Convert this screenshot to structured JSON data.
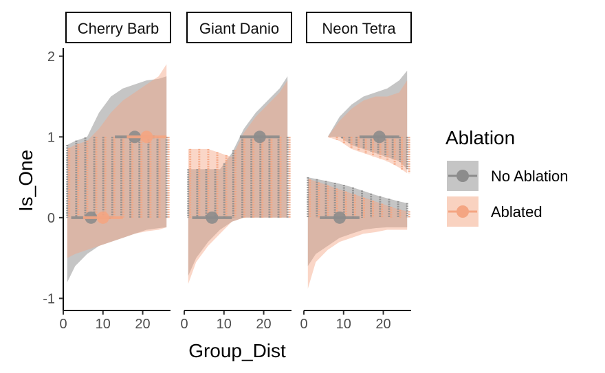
{
  "chart_data": {
    "type": "scatter",
    "description_style": "faceted raincloud-like plot with ribbons, jittered dots and summary points",
    "xlabel": "Group_Dist",
    "ylabel": "Is_One",
    "xlim": [
      0,
      27
    ],
    "ylim": [
      -1.15,
      2.1
    ],
    "x_ticks": [
      0,
      10,
      20
    ],
    "y_ticks": [
      -1,
      0,
      1,
      2
    ],
    "grid": false,
    "legend": {
      "title": "Ablation",
      "position": "right",
      "entries": [
        {
          "label": "No Ablation",
          "color": "#8c8c8c"
        },
        {
          "label": "Ablated",
          "color": "#f4a582"
        }
      ]
    },
    "facets": [
      {
        "label": "Cherry Barb",
        "summary_points": [
          {
            "series": "No Ablation",
            "x": 7,
            "y": 0
          },
          {
            "series": "No Ablation",
            "x": 18,
            "y": 1
          },
          {
            "series": "Ablated",
            "x": 10,
            "y": 0
          },
          {
            "series": "Ablated",
            "x": 21,
            "y": 1
          }
        ],
        "ribbons": [
          {
            "series": "No Ablation",
            "x": [
              1,
              3,
              6,
              9,
              12,
              15,
              18,
              21,
              24,
              26
            ],
            "upper": [
              0.9,
              0.95,
              1.0,
              1.3,
              1.5,
              1.6,
              1.65,
              1.7,
              1.72,
              1.75
            ],
            "lower": [
              -0.8,
              -0.6,
              -0.45,
              -0.35,
              -0.3,
              -0.25,
              -0.2,
              -0.15,
              -0.13,
              -0.12
            ]
          },
          {
            "series": "Ablated",
            "x": [
              1,
              3,
              6,
              9,
              12,
              15,
              18,
              21,
              24,
              26
            ],
            "upper": [
              0.85,
              0.9,
              0.95,
              1.1,
              1.3,
              1.45,
              1.55,
              1.65,
              1.75,
              1.9
            ],
            "lower": [
              -0.5,
              -0.45,
              -0.4,
              -0.35,
              -0.3,
              -0.25,
              -0.2,
              -0.17,
              -0.15,
              -0.12
            ]
          }
        ]
      },
      {
        "label": "Giant Danio",
        "summary_points": [
          {
            "series": "No Ablation",
            "x": 7,
            "y": 0
          },
          {
            "series": "No Ablation",
            "x": 19,
            "y": 1
          }
        ],
        "ribbons": [
          {
            "series": "No Ablation",
            "x": [
              1,
              3,
              6,
              9,
              12,
              15,
              18,
              21,
              24,
              26
            ],
            "upper": [
              0.6,
              0.6,
              0.6,
              0.6,
              0.8,
              1.1,
              1.3,
              1.45,
              1.6,
              1.75
            ],
            "lower": [
              -0.72,
              -0.5,
              -0.3,
              -0.15,
              -0.05,
              0.0,
              0.0,
              0.0,
              0.0,
              0.0
            ]
          },
          {
            "series": "Ablated",
            "x": [
              1,
              3,
              6,
              9,
              12,
              15,
              18,
              21,
              24,
              26
            ],
            "upper": [
              0.85,
              0.85,
              0.85,
              0.8,
              0.75,
              1.05,
              1.25,
              1.4,
              1.55,
              1.7
            ],
            "lower": [
              -0.82,
              -0.55,
              -0.35,
              -0.2,
              -0.05,
              0.0,
              0.0,
              0.0,
              0.0,
              0.0
            ]
          }
        ]
      },
      {
        "label": "Neon Tetra",
        "summary_points": [
          {
            "series": "No Ablation",
            "x": 9,
            "y": 0
          },
          {
            "series": "No Ablation",
            "x": 19,
            "y": 1
          }
        ],
        "ribbons": [
          {
            "series": "No Ablation",
            "x": [
              1,
              3,
              6,
              9,
              12,
              15,
              18,
              21,
              24,
              26
            ],
            "upper": [
              0.5,
              0.48,
              0.45,
              0.42,
              0.38,
              0.33,
              0.28,
              0.24,
              0.2,
              0.18
            ],
            "lower": [
              -0.6,
              -0.45,
              -0.35,
              -0.25,
              -0.2,
              -0.15,
              -0.13,
              -0.12,
              -0.12,
              -0.12
            ]
          },
          {
            "series": "Ablated",
            "x": [
              1,
              3,
              6,
              9,
              12,
              15,
              18,
              21,
              24,
              26
            ],
            "upper": [
              0.48,
              0.45,
              0.4,
              0.35,
              0.3,
              0.25,
              0.2,
              0.15,
              0.1,
              0.08
            ],
            "lower": [
              -0.88,
              -0.55,
              -0.4,
              -0.3,
              -0.25,
              -0.2,
              -0.18,
              -0.15,
              -0.15,
              -0.15
            ]
          },
          {
            "series": "No Ablation",
            "x": [
              6,
              9,
              12,
              15,
              18,
              21,
              24,
              26
            ],
            "upper": [
              1.0,
              1.25,
              1.4,
              1.5,
              1.55,
              1.6,
              1.7,
              1.82
            ],
            "lower": [
              1.0,
              1.0,
              0.9,
              0.85,
              0.8,
              0.75,
              0.7,
              0.6
            ]
          },
          {
            "series": "Ablated",
            "x": [
              6,
              9,
              12,
              15,
              18,
              21,
              24,
              26
            ],
            "upper": [
              1.0,
              1.2,
              1.35,
              1.45,
              1.5,
              1.5,
              1.55,
              1.7
            ],
            "lower": [
              1.0,
              0.95,
              0.85,
              0.8,
              0.75,
              0.7,
              0.62,
              0.55
            ]
          }
        ]
      }
    ]
  }
}
